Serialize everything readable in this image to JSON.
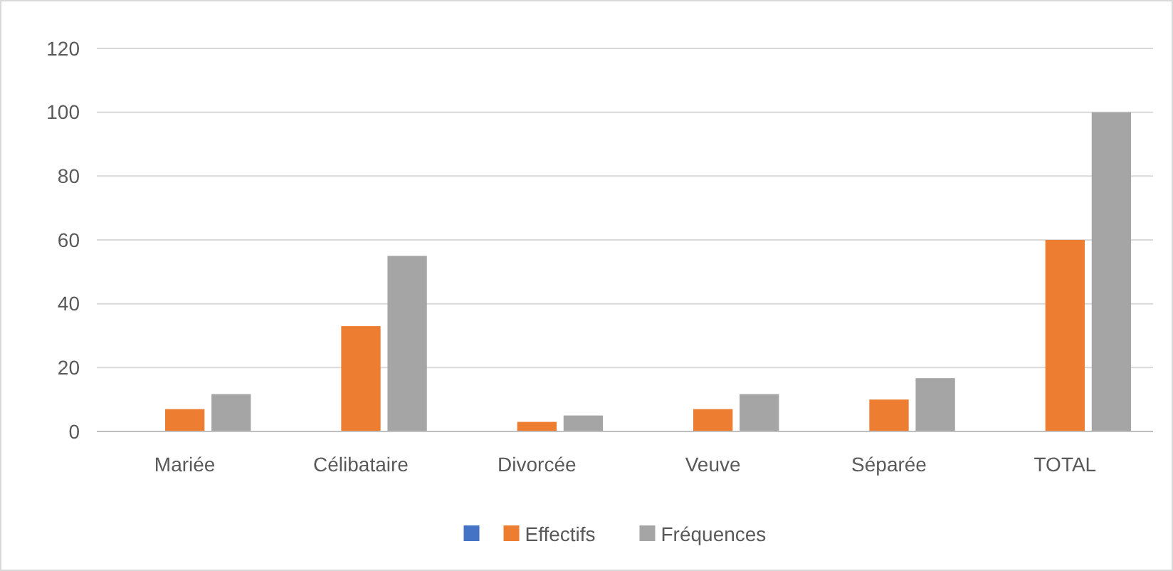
{
  "chart_data": {
    "type": "bar",
    "categories": [
      "Mariée",
      "Célibataire",
      "Divorcée",
      "Veuve",
      "Séparée",
      "TOTAL"
    ],
    "series": [
      {
        "color": "#4472c4",
        "values": [
          0,
          0,
          0,
          0,
          0,
          0
        ]
      },
      {
        "name": "Effectifs",
        "color": "#ed7d31",
        "values": [
          7,
          33,
          3,
          7,
          10,
          60
        ]
      },
      {
        "name": "Fréquences",
        "color": "#a5a5a5",
        "values": [
          11.7,
          55,
          5,
          11.7,
          16.7,
          100
        ]
      }
    ],
    "ylim": [
      0,
      120
    ],
    "yticks": [
      0,
      20,
      40,
      60,
      80,
      100,
      120
    ],
    "grid": "y",
    "legend": "bottom"
  }
}
